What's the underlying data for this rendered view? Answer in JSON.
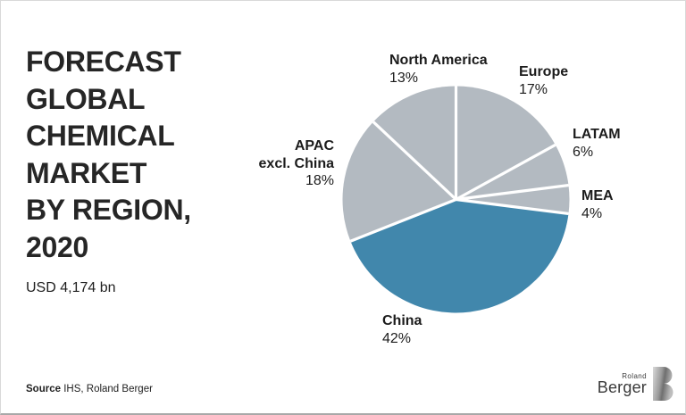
{
  "header": {
    "title": "FORECAST\nGLOBAL\nCHEMICAL\nMARKET\nBY REGION,\n2020",
    "subtitle": "USD 4,174 bn"
  },
  "chart_data": {
    "type": "pie",
    "title": "Forecast global chemical market by region, 2020",
    "total_label": "USD 4,174 bn",
    "unit": "%",
    "start_angle_deg": 0,
    "direction": "clockwise",
    "divider_color": "#ffffff",
    "slices": [
      {
        "label": "Europe",
        "pct_label": "17%",
        "value": 17,
        "color": "#b3bac1"
      },
      {
        "label": "LATAM",
        "pct_label": "6%",
        "value": 6,
        "color": "#b3bac1"
      },
      {
        "label": "MEA",
        "pct_label": "4%",
        "value": 4,
        "color": "#b3bac1"
      },
      {
        "label": "China",
        "pct_label": "42%",
        "value": 42,
        "color": "#4187ac"
      },
      {
        "label": "APAC excl. China",
        "label_display": "APAC\nexcl. China",
        "pct_label": "18%",
        "value": 18,
        "color": "#b3bac1"
      },
      {
        "label": "North America",
        "pct_label": "13%",
        "value": 13,
        "color": "#b3bac1"
      }
    ]
  },
  "source": {
    "label": "Source",
    "text": "IHS, Roland Berger"
  },
  "logo": {
    "top": "Roland",
    "bottom": "Berger",
    "mark": "roland-berger-b-monogram"
  }
}
